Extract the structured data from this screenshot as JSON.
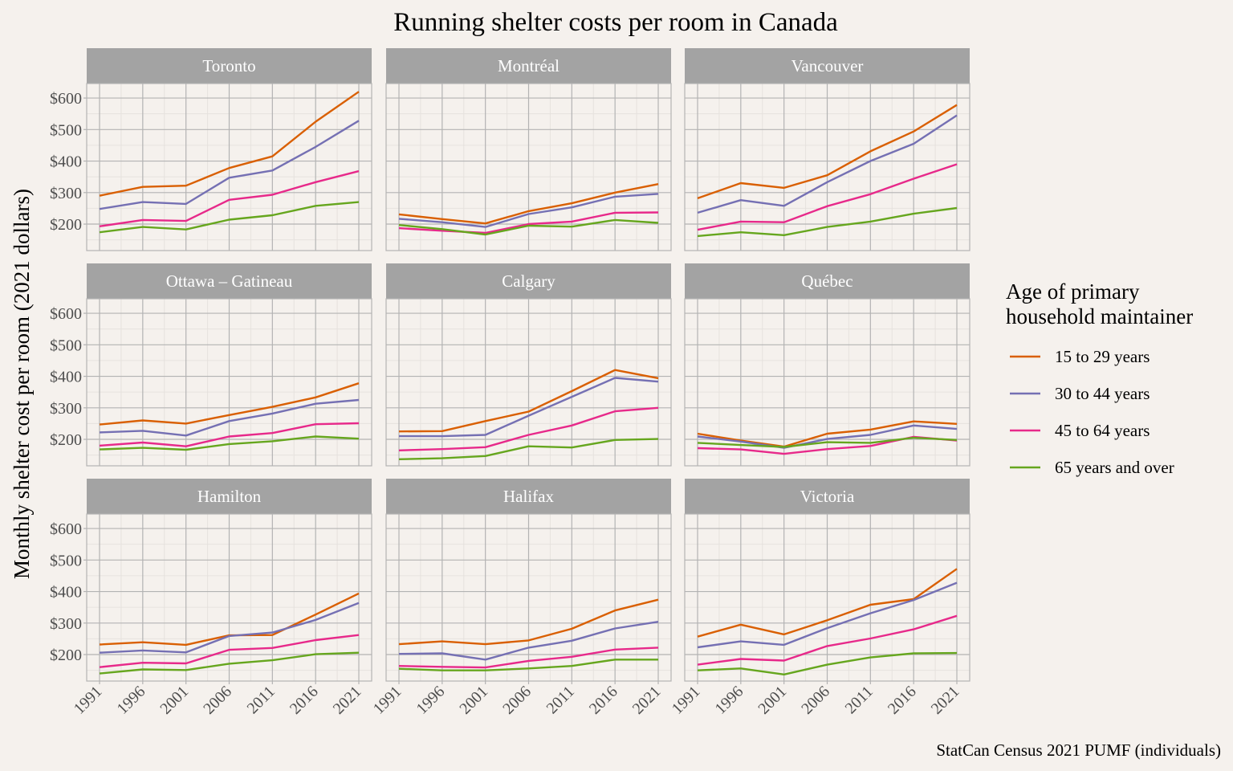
{
  "chart_data": {
    "type": "line",
    "title": "Running shelter costs per room in Canada",
    "xlabel": "",
    "ylabel": "Monthly shelter cost per room (2021 dollars)",
    "caption": "StatCan Census 2021 PUMF (individuals)",
    "x": [
      1991,
      1996,
      2001,
      2006,
      2011,
      2016,
      2021
    ],
    "x_tick_labels": [
      "1991",
      "1996",
      "2001",
      "2006",
      "2011",
      "2016",
      "2021"
    ],
    "y_ticks": [
      200,
      300,
      400,
      500,
      600
    ],
    "y_tick_labels": [
      "$200",
      "$300",
      "$400",
      "$500",
      "$600"
    ],
    "ylim": [
      116,
      646
    ],
    "grid": true,
    "legend": {
      "title_lines": [
        "Age of primary",
        "household maintainer"
      ],
      "position": "right",
      "entries": [
        {
          "name": "15 to 29 years",
          "color": "#d95f02"
        },
        {
          "name": "30 to 44 years",
          "color": "#7570b3"
        },
        {
          "name": "45 to 64 years",
          "color": "#e7298a"
        },
        {
          "name": "65 years and over",
          "color": "#66a61e"
        }
      ]
    },
    "panels": [
      {
        "name": "Toronto",
        "series": [
          {
            "name": "15 to 29 years",
            "values": [
              290,
              318,
              322,
              378,
              415,
              525,
              620
            ]
          },
          {
            "name": "30 to 44 years",
            "values": [
              248,
              270,
              264,
              347,
              370,
              445,
              528
            ]
          },
          {
            "name": "45 to 64 years",
            "values": [
              193,
              213,
              210,
              277,
              293,
              333,
              368
            ]
          },
          {
            "name": "65 years and over",
            "values": [
              174,
              191,
              183,
              214,
              228,
              258,
              270
            ]
          }
        ]
      },
      {
        "name": "Montréal",
        "series": [
          {
            "name": "15 to 29 years",
            "values": [
              231,
              216,
              202,
              241,
              266,
              300,
              327
            ]
          },
          {
            "name": "30 to 44 years",
            "values": [
              217,
              206,
              191,
              232,
              253,
              287,
              296
            ]
          },
          {
            "name": "45 to 64 years",
            "values": [
              187,
              179,
              172,
              200,
              208,
              236,
              237
            ]
          },
          {
            "name": "65 years and over",
            "values": [
              197,
              184,
              167,
              195,
              192,
              213,
              204
            ]
          }
        ]
      },
      {
        "name": "Vancouver",
        "series": [
          {
            "name": "15 to 29 years",
            "values": [
              282,
              330,
              315,
              355,
              431,
              494,
              578
            ]
          },
          {
            "name": "30 to 44 years",
            "values": [
              236,
              276,
              258,
              333,
              400,
              455,
              545
            ]
          },
          {
            "name": "45 to 64 years",
            "values": [
              182,
              208,
              206,
              257,
              295,
              344,
              390
            ]
          },
          {
            "name": "65 years and over",
            "values": [
              162,
              174,
              165,
              191,
              208,
              233,
              251
            ]
          }
        ]
      },
      {
        "name": "Ottawa – Gatineau",
        "series": [
          {
            "name": "15 to 29 years",
            "values": [
              247,
              260,
              250,
              277,
              303,
              333,
              378
            ]
          },
          {
            "name": "30 to 44 years",
            "values": [
              222,
              227,
              212,
              258,
              282,
              313,
              325
            ]
          },
          {
            "name": "45 to 64 years",
            "values": [
              180,
              190,
              178,
              209,
              220,
              248,
              251
            ]
          },
          {
            "name": "65 years and over",
            "values": [
              168,
              173,
              167,
              185,
              194,
              209,
              202
            ]
          }
        ]
      },
      {
        "name": "Calgary",
        "series": [
          {
            "name": "15 to 29 years",
            "values": [
              225,
              226,
              258,
              288,
              353,
              420,
              394
            ]
          },
          {
            "name": "30 to 44 years",
            "values": [
              210,
              210,
              214,
              275,
              335,
              395,
              383
            ]
          },
          {
            "name": "45 to 64 years",
            "values": [
              165,
              169,
              175,
              214,
              244,
              289,
              300
            ]
          },
          {
            "name": "65 years and over",
            "values": [
              137,
              140,
              147,
              178,
              174,
              198,
              201
            ]
          }
        ]
      },
      {
        "name": "Québec",
        "series": [
          {
            "name": "15 to 29 years",
            "values": [
              218,
              196,
              177,
              218,
              231,
              257,
              249
            ]
          },
          {
            "name": "30 to 44 years",
            "values": [
              209,
              193,
              173,
              201,
              214,
              244,
              233
            ]
          },
          {
            "name": "45 to 64 years",
            "values": [
              172,
              168,
              154,
              169,
              179,
              208,
              196
            ]
          },
          {
            "name": "65 years and over",
            "values": [
              189,
              182,
              176,
              191,
              189,
              205,
              198
            ]
          }
        ]
      },
      {
        "name": "Hamilton",
        "series": [
          {
            "name": "15 to 29 years",
            "values": [
              232,
              239,
              231,
              261,
              262,
              327,
              394
            ]
          },
          {
            "name": "30 to 44 years",
            "values": [
              206,
              213,
              207,
              259,
              270,
              310,
              364
            ]
          },
          {
            "name": "45 to 64 years",
            "values": [
              160,
              174,
              172,
              215,
              221,
              246,
              262
            ]
          },
          {
            "name": "65 years and over",
            "values": [
              140,
              153,
              151,
              171,
              182,
              201,
              206
            ]
          }
        ]
      },
      {
        "name": "Halifax",
        "series": [
          {
            "name": "15 to 29 years",
            "values": [
              233,
              242,
              233,
              245,
              282,
              340,
              374
            ]
          },
          {
            "name": "30 to 44 years",
            "values": [
              202,
              204,
              184,
              222,
              244,
              283,
              304
            ]
          },
          {
            "name": "45 to 64 years",
            "values": [
              164,
              161,
              159,
              180,
              193,
              216,
              222
            ]
          },
          {
            "name": "65 years and over",
            "values": [
              155,
              150,
              150,
              156,
              164,
              184,
              184
            ]
          }
        ]
      },
      {
        "name": "Victoria",
        "series": [
          {
            "name": "15 to 29 years",
            "values": [
              257,
              295,
              264,
              309,
              358,
              376,
              472
            ]
          },
          {
            "name": "30 to 44 years",
            "values": [
              223,
              242,
              231,
              284,
              331,
              373,
              428
            ]
          },
          {
            "name": "45 to 64 years",
            "values": [
              168,
              186,
              181,
              227,
              251,
              280,
              323
            ]
          },
          {
            "name": "65 years and over",
            "values": [
              150,
              156,
              137,
              168,
              191,
              204,
              205
            ]
          }
        ]
      }
    ]
  }
}
